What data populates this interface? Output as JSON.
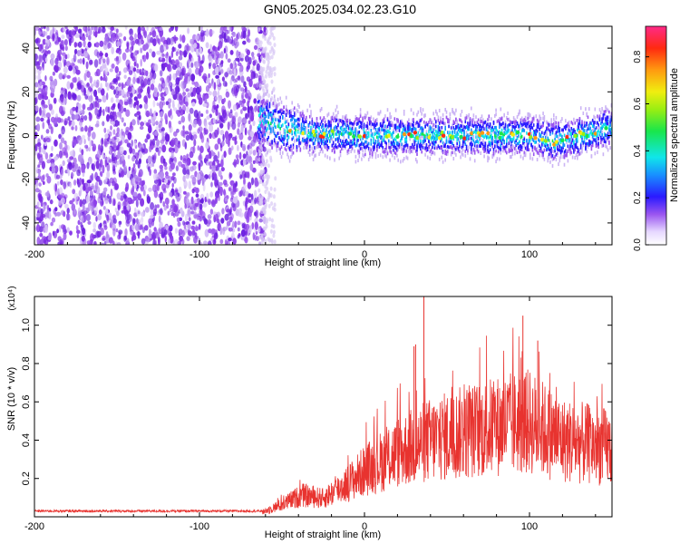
{
  "title": "GN05.2025.034.02.23.G10",
  "colorbar": {
    "label": "Normalized spectral amplitude",
    "ticks": [
      "0.0",
      "0.2",
      "0.4",
      "0.6",
      "0.8"
    ],
    "range": [
      0,
      0.93
    ]
  },
  "chart_data": [
    {
      "type": "heatmap",
      "xlabel": "Height of straight line (km)",
      "ylabel": "Frequency (Hz)",
      "xlim": [
        -200,
        150
      ],
      "ylim": [
        -50,
        50
      ],
      "x_ticks": [
        "-200",
        "-100",
        "0",
        "100"
      ],
      "y_ticks": [
        "-40",
        "-20",
        "0",
        "20",
        "40"
      ],
      "noise_region_x": [
        -200,
        -62
      ],
      "signal_band_x": [
        -65,
        150
      ],
      "signal_center_hz": [
        {
          "x": -65,
          "y": 8
        },
        {
          "x": -50,
          "y": 3
        },
        {
          "x": -30,
          "y": 1
        },
        {
          "x": 0,
          "y": 0
        },
        {
          "x": 50,
          "y": 0
        },
        {
          "x": 100,
          "y": 0
        },
        {
          "x": 115,
          "y": -3
        },
        {
          "x": 130,
          "y": 0
        },
        {
          "x": 150,
          "y": 4
        }
      ],
      "grid": false
    },
    {
      "type": "line",
      "xlabel": "Height of straight line (km)",
      "ylabel": "SNR (10 * v/v)",
      "y_multiplier": "(x10⁴)",
      "xlim": [
        -200,
        150
      ],
      "ylim": [
        0,
        1.15
      ],
      "x_ticks": [
        "-200",
        "-100",
        "0",
        "100"
      ],
      "y_ticks": [
        "0.2",
        "0.4",
        "0.6",
        "0.8",
        "1.0"
      ],
      "color": "#e8332f",
      "envelope": [
        {
          "x": -200,
          "y": 0.03
        },
        {
          "x": -62,
          "y": 0.03
        },
        {
          "x": -50,
          "y": 0.08
        },
        {
          "x": -38,
          "y": 0.14
        },
        {
          "x": -25,
          "y": 0.12
        },
        {
          "x": -10,
          "y": 0.22
        },
        {
          "x": 0,
          "y": 0.3
        },
        {
          "x": 20,
          "y": 0.42
        },
        {
          "x": 40,
          "y": 0.5
        },
        {
          "x": 60,
          "y": 0.55
        },
        {
          "x": 85,
          "y": 0.6
        },
        {
          "x": 100,
          "y": 0.62
        },
        {
          "x": 120,
          "y": 0.5
        },
        {
          "x": 150,
          "y": 0.45
        }
      ],
      "peaks": [
        {
          "x": 36,
          "y": 1.15
        },
        {
          "x": 96,
          "y": 1.05
        },
        {
          "x": 31,
          "y": 0.9
        },
        {
          "x": 105,
          "y": 0.92
        },
        {
          "x": 30,
          "y": 0.89
        }
      ],
      "grid": false
    }
  ]
}
